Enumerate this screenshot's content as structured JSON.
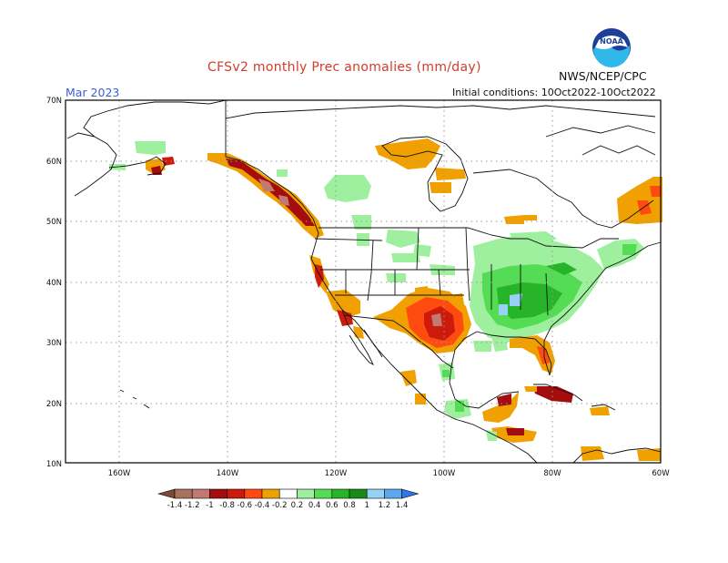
{
  "header": {
    "title": "CFSv2 monthly Prec anomalies (mm/day)",
    "agency": "NWS/NCEP/CPC",
    "month": "Mar 2023",
    "initial_conditions": "Initial conditions: 10Oct2022-10Oct2022",
    "logo_text": "NOAA"
  },
  "axes": {
    "lat_labels": [
      "70N",
      "60N",
      "50N",
      "40N",
      "30N",
      "20N",
      "10N"
    ],
    "lon_labels": [
      "160W",
      "140W",
      "120W",
      "100W",
      "80W",
      "60W"
    ]
  },
  "colorbar": {
    "labels": [
      "-1.4",
      "-1.2",
      "-1",
      "-0.8",
      "-0.6",
      "-0.4",
      "-0.2",
      "0.2",
      "0.4",
      "0.6",
      "0.8",
      "1",
      "1.2",
      "1.4"
    ],
    "colors": [
      "#7a4a36",
      "#a8725e",
      "#c07a72",
      "#a30d0d",
      "#cc1a0d",
      "#ff4a10",
      "#f0a000",
      "#ffffff",
      "#9ef09e",
      "#55dc55",
      "#28b428",
      "#168c16",
      "#96d2f5",
      "#5aa8ee",
      "#2c78e6"
    ]
  }
}
